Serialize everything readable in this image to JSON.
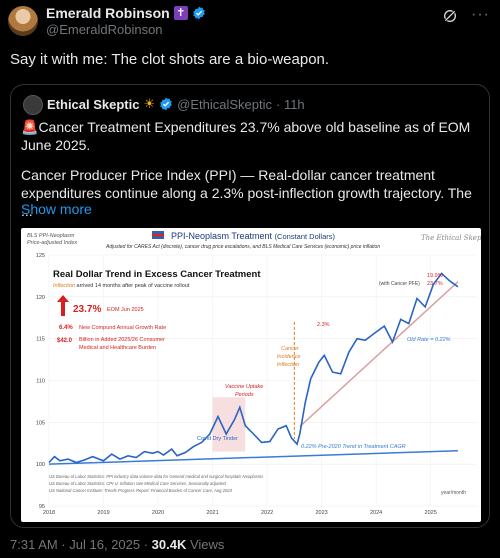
{
  "author": {
    "display_name": "Emerald Robinson",
    "handle": "@EmeraldRobinson"
  },
  "tweet_text": "Say it with me: The clot shots are a bio-weapon.",
  "quote": {
    "display_name": "Ethical Skeptic",
    "handle": "@EthicalSkeptic",
    "time": "· 11h",
    "headline": "Cancer Treatment Expenditures 23.7% above old baseline as of EOM June 2025.",
    "body": "Cancer Producer Price Index (PPI) — Real-dollar cancer treatment expenditures continue along a 2.3% post-inflection growth trajectory. The ...",
    "show_more": "Show more"
  },
  "chart": {
    "left_note_1": "BLS PPI-Neoplasm",
    "left_note_2": "Price-adjusted Index",
    "title": "PPI-Neoplasm Treatment",
    "title_sub": "(Constant Dollars)",
    "subtitle": "Adjusted for CARES Act (discrete), cancer drug price escalations, and BLS Medical Care Services (economic) price inflation",
    "signature": "The Ethical Skeptic",
    "headline": "Real Dollar Trend in Excess Cancer Treatment",
    "inflection_word": "Inflection",
    "inflection_rest": "arrived 14 months after peak of vaccine rollout",
    "big_pct": "23.7%",
    "eom": "EOM Jun 2025",
    "cagr_val": "6.4%",
    "cagr_label": "New Compund Annual Growth Rate",
    "billion_val": "$42.0",
    "billion_label_1": "Billion in Added 2025/26 Consumer",
    "billion_label_2": "Medical and Healthcare Burden",
    "ann_19": "19.9%",
    "ann_pfe": "(with Cancer PFE)",
    "ann_23": "23.7%",
    "ann_23pct": "2.3%",
    "old_rate": "Old Rate = 0.22%",
    "pre_trend": "0.22%   Pre-2020 Trend in Treatment CAGR",
    "cancer_incidence_1": "Cancer",
    "cancer_incidence_2": "Incidence",
    "cancer_incidence_3": "Inflection",
    "vaccine_1": "Vaccine Uptake",
    "vaccine_2": "Periods",
    "covid": "Covid Dry Tinder",
    "year_month": "year/month",
    "source_1": "US Bureau of Labor Statistics: PPI industry data volume data for General medical and surgical hospitals Neoplasms",
    "source_2": "US Bureau of Labor Statistics: CPI-U: Inflation rate Medical Care Services, Seasonally adjusted",
    "source_3": "US National Cancer Institute: Trends Progress Report: Financial Burden of Cancer Care, Aug 2023"
  },
  "chart_data": {
    "type": "line",
    "x_ticks": [
      "2018",
      "2019",
      "2020",
      "2021",
      "2022",
      "2023",
      "2024",
      "2025"
    ],
    "y_ticks": [
      95,
      100,
      105,
      110,
      115,
      120,
      125
    ],
    "ylim": [
      95,
      125
    ],
    "series": [
      {
        "values": [
          [
            2018.0,
            100.2
          ],
          [
            2018.1,
            100.9
          ],
          [
            2018.2,
            100.4
          ],
          [
            2018.35,
            100.6
          ],
          [
            2018.5,
            100.2
          ],
          [
            2018.65,
            100.5
          ],
          [
            2018.8,
            100.9
          ],
          [
            2019.0,
            100.4
          ],
          [
            2019.15,
            101.2
          ],
          [
            2019.3,
            100.6
          ],
          [
            2019.45,
            101.0
          ],
          [
            2019.6,
            100.8
          ],
          [
            2019.75,
            101.5
          ],
          [
            2019.9,
            101.3
          ],
          [
            2020.0,
            101.5
          ],
          [
            2020.1,
            101.1
          ],
          [
            2020.25,
            101.8
          ],
          [
            2020.35,
            101.0
          ],
          [
            2020.5,
            101.4
          ],
          [
            2020.65,
            102.1
          ],
          [
            2020.8,
            102.6
          ],
          [
            2020.95,
            103.6
          ],
          [
            2021.1,
            105.7
          ],
          [
            2021.25,
            103.6
          ],
          [
            2021.4,
            105.3
          ],
          [
            2021.5,
            106.8
          ],
          [
            2021.6,
            104.6
          ],
          [
            2021.75,
            103.6
          ],
          [
            2021.9,
            102.6
          ],
          [
            2022.05,
            102.7
          ],
          [
            2022.2,
            104.2
          ],
          [
            2022.35,
            104.6
          ],
          [
            2022.45,
            103.1
          ],
          [
            2022.55,
            102.4
          ],
          [
            2022.6,
            103.6
          ],
          [
            2022.7,
            107.4
          ],
          [
            2022.8,
            110.2
          ],
          [
            2022.95,
            112.2
          ],
          [
            2023.05,
            113.0
          ],
          [
            2023.2,
            111.0
          ],
          [
            2023.35,
            110.8
          ],
          [
            2023.5,
            113.4
          ],
          [
            2023.65,
            115.0
          ],
          [
            2023.8,
            114.8
          ],
          [
            2024.0,
            115.8
          ],
          [
            2024.15,
            116.5
          ],
          [
            2024.3,
            114.6
          ],
          [
            2024.45,
            117.3
          ],
          [
            2024.6,
            116.8
          ],
          [
            2024.75,
            119.8
          ],
          [
            2024.9,
            118.8
          ],
          [
            2025.05,
            121.5
          ],
          [
            2025.2,
            122.8
          ],
          [
            2025.35,
            121.9
          ],
          [
            2025.5,
            121.2
          ]
        ]
      }
    ],
    "old_trend": [
      [
        2018.0,
        100.0
      ],
      [
        2025.5,
        101.6
      ]
    ],
    "new_trend": [
      [
        2022.6,
        104.5
      ],
      [
        2025.5,
        121.8
      ]
    ],
    "vaccine_period": [
      2021.0,
      2021.6
    ],
    "inflection_x": 2022.5
  }
}
